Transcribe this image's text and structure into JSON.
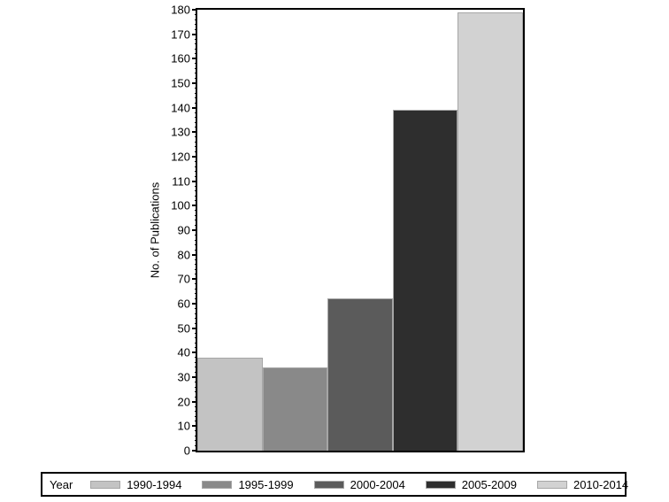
{
  "chart_data": {
    "type": "bar",
    "title": "",
    "xlabel": "",
    "ylabel": "No. of Publications",
    "legend_title": "Year",
    "legend_position": "bottom",
    "categories": [
      "1990-1994",
      "1995-1999",
      "2000-2004",
      "2005-2009",
      "2010-2014"
    ],
    "values": [
      38,
      34,
      62,
      139,
      179
    ],
    "ylim": [
      0,
      180
    ],
    "ytick_major_step": 10,
    "ytick_minor_step": 2,
    "grid": false,
    "colors": {
      "bars": [
        "#c3c3c3",
        "#898989",
        "#5b5b5b",
        "#2e2e2e",
        "#d2d2d2"
      ],
      "bar_outline": "#a6a6a6",
      "axis": "#000000",
      "background": "#ffffff"
    }
  }
}
